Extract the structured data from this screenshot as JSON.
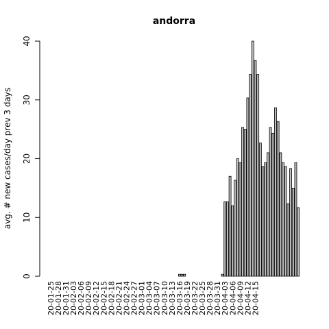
{
  "chart_data": {
    "type": "bar",
    "title": "andorra",
    "xlabel": "",
    "ylabel": "avg. # new cases/day prev  3  days",
    "ylim": [
      0,
      40
    ],
    "yticks": [
      0,
      10,
      20,
      30,
      40
    ],
    "bar_fill": "#bebebe",
    "bar_stroke": "#000000",
    "start_date": "2020-01-25",
    "tick_every_days": 3,
    "tick_labels": [
      "20-01-25",
      "20-01-28",
      "20-01-31",
      "20-02-03",
      "20-02-06",
      "20-02-09",
      "20-02-12",
      "20-02-15",
      "20-02-18",
      "20-02-21",
      "20-02-24",
      "20-02-27",
      "20-03-01",
      "20-03-04",
      "20-03-07",
      "20-03-10",
      "20-03-13",
      "20-03-16",
      "20-03-19",
      "20-03-22",
      "20-03-25",
      "20-03-28",
      "20-03-31",
      "20-04-03",
      "20-04-06",
      "20-04-09",
      "20-04-12",
      "20-04-15"
    ],
    "series": [
      {
        "values": [
          0,
          0,
          0,
          0,
          0,
          0,
          0,
          0,
          0,
          0,
          0,
          0,
          0,
          0,
          0,
          0,
          0,
          0,
          0,
          0,
          0,
          0,
          0,
          0,
          0,
          0,
          0,
          0,
          0,
          0,
          0,
          0,
          0,
          0,
          0,
          0,
          0,
          0,
          0,
          0,
          0,
          0,
          0,
          0,
          0,
          0,
          0,
          0,
          0,
          0,
          0,
          0.33,
          0.33,
          0.33,
          0,
          0,
          0,
          0,
          0,
          0,
          0,
          0,
          0,
          0,
          0,
          0,
          0,
          0,
          0.33,
          12.67,
          12.67,
          17,
          12,
          16.33,
          20,
          19.33,
          25.33,
          25,
          30.33,
          34.33,
          40,
          36.67,
          34.33,
          22.67,
          18.67,
          19.33,
          21,
          25.33,
          24.33,
          28.67,
          26.33,
          21,
          19.33,
          18.67,
          12.33,
          18.33,
          15,
          19.33,
          11.67
        ]
      }
    ]
  }
}
